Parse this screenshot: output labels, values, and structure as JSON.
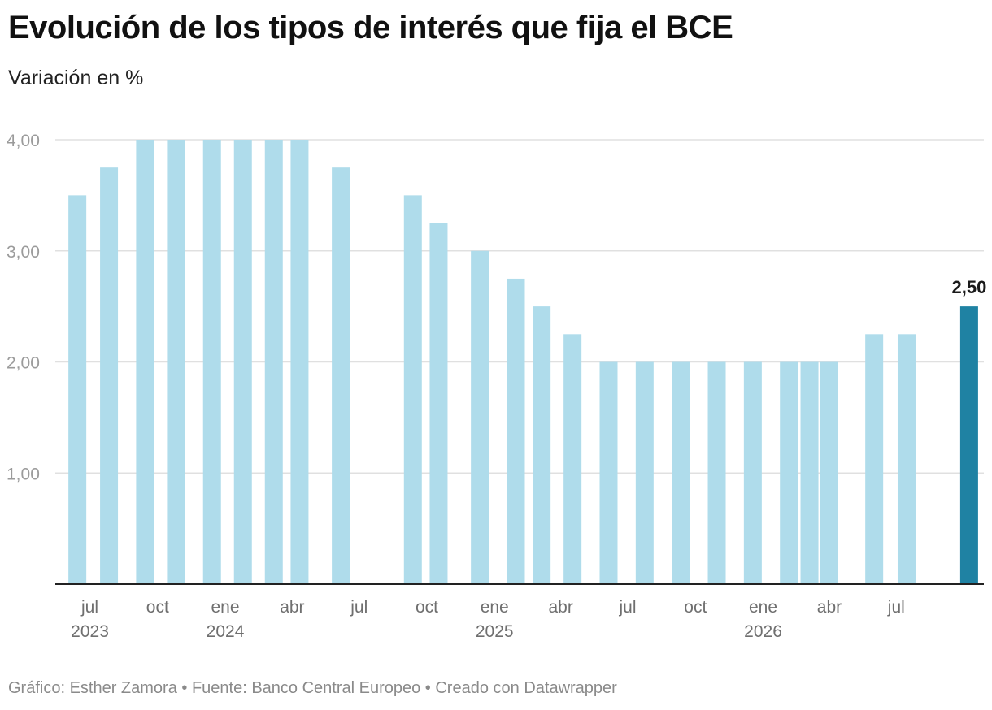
{
  "chart_data": {
    "type": "bar",
    "title": "Evolución de los tipos de interés que fija el BCE",
    "subtitle": "Variación en %",
    "ylim": [
      0,
      4
    ],
    "yticks": [
      {
        "value": 1,
        "label": "1,00"
      },
      {
        "value": 2,
        "label": "2,00"
      },
      {
        "value": 3,
        "label": "3,00"
      },
      {
        "value": 4,
        "label": "4,00"
      }
    ],
    "xlim": [
      "2023-05-15",
      "2026-10-28"
    ],
    "x": [
      "2023-06-14",
      "2023-07-27",
      "2023-09-14",
      "2023-10-26",
      "2023-12-14",
      "2024-01-25",
      "2024-03-07",
      "2024-04-11",
      "2024-06-06",
      "2024-09-12",
      "2024-10-17",
      "2024-12-12",
      "2025-01-30",
      "2025-03-06",
      "2025-04-17",
      "2025-06-05",
      "2025-07-24",
      "2025-09-11",
      "2025-10-30",
      "2025-12-18",
      "2026-02-05",
      "2026-03-05",
      "2026-04-01",
      "2026-06-01",
      "2026-07-15",
      "2026-10-08"
    ],
    "values": [
      3.5,
      3.75,
      4,
      4,
      4,
      4,
      4,
      4,
      3.75,
      3.5,
      3.25,
      3,
      2.75,
      2.5,
      2.25,
      2,
      2,
      2,
      2,
      2,
      2,
      2,
      2,
      2.25,
      2.25,
      2.5
    ],
    "highlight_index": 25,
    "data_labels": [
      {
        "index": 25,
        "label": "2,50"
      }
    ],
    "xticks": [
      {
        "date": "2023-07-01",
        "month": "jul",
        "year": "2023"
      },
      {
        "date": "2023-10-01",
        "month": "oct",
        "year": ""
      },
      {
        "date": "2024-01-01",
        "month": "ene",
        "year": "2024"
      },
      {
        "date": "2024-04-01",
        "month": "abr",
        "year": ""
      },
      {
        "date": "2024-07-01",
        "month": "jul",
        "year": ""
      },
      {
        "date": "2024-10-01",
        "month": "oct",
        "year": ""
      },
      {
        "date": "2025-01-01",
        "month": "ene",
        "year": "2025"
      },
      {
        "date": "2025-04-01",
        "month": "abr",
        "year": ""
      },
      {
        "date": "2025-07-01",
        "month": "jul",
        "year": ""
      },
      {
        "date": "2025-10-01",
        "month": "oct",
        "year": ""
      },
      {
        "date": "2026-01-01",
        "month": "ene",
        "year": "2026"
      },
      {
        "date": "2026-04-01",
        "month": "abr",
        "year": ""
      },
      {
        "date": "2026-07-01",
        "month": "jul",
        "year": ""
      }
    ],
    "colors": {
      "bar": "#afdceb",
      "highlight": "#1f82a3",
      "grid": "#e0e0e0",
      "axis": "#222222"
    },
    "grid": true
  },
  "footer": "Gráfico: Esther Zamora • Fuente: Banco Central Europeo • Creado con Datawrapper"
}
